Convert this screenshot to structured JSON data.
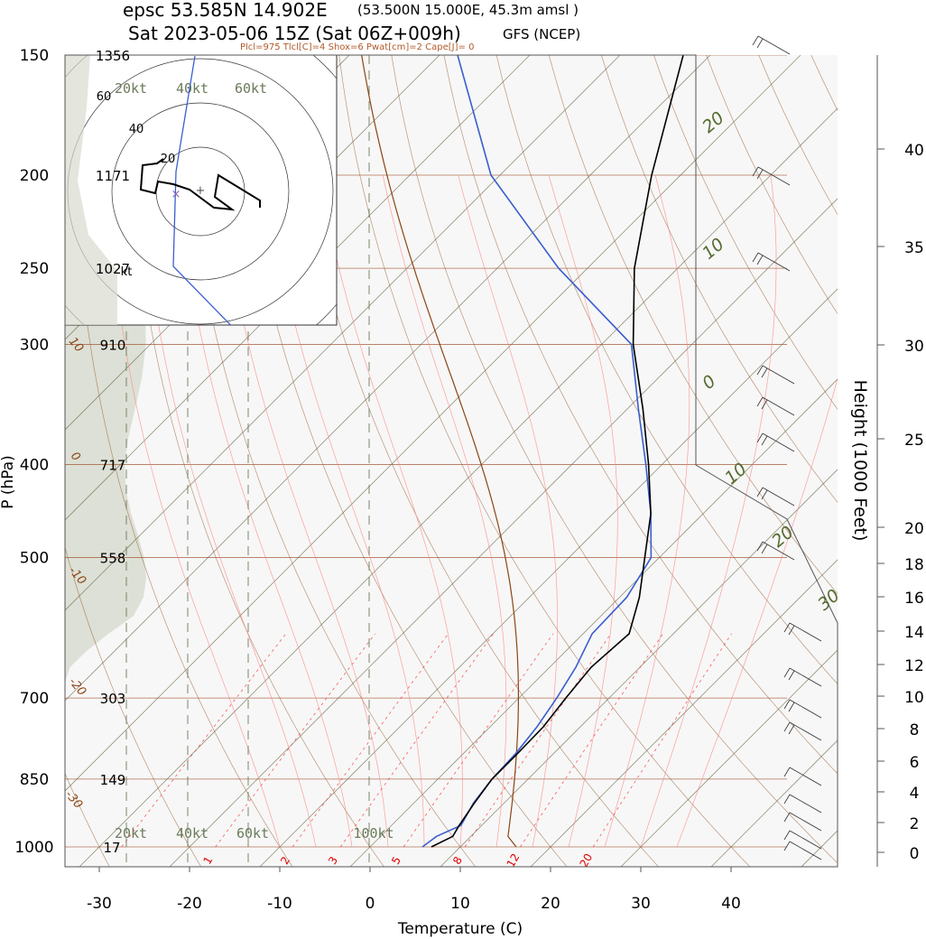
{
  "header": {
    "title_main": "epsc 53.585N 14.902E",
    "title_coords": "(53.500N 15.000E,  45.3m amsl )",
    "subtitle_main": "Sat 2023-05-06 15Z (Sat 06Z+009h)",
    "model": "GFS (NCEP)",
    "indices": "Plcl=975 Tlcl[C]=4 Shox=6 Pwat[cm]=2 Cape[J]= 0"
  },
  "colors": {
    "isobar": "#a0522d",
    "isotherm": "#6b6b4a",
    "dry_adiabat": "#8b4513",
    "moist_adiabat": "#ff8080",
    "mixing_ratio": "#ff3030",
    "temperature": "#000000",
    "dewpoint": "#3a5fcd",
    "parcel": "#8b4513",
    "shade": "#d8dcd0",
    "hodo_dewline": "#3a5fcd",
    "label_green": "#556b2f"
  },
  "chart_data": {
    "type": "skew-t",
    "xlabel": "Temperature (C)",
    "ylabel": "P (hPa)",
    "y2label": "Height (1000 Feet)",
    "pressure_levels": [
      150,
      200,
      250,
      300,
      400,
      500,
      700,
      850,
      1000
    ],
    "pressure_tick_labels": [
      "150",
      "200",
      "250",
      "300",
      "400",
      "500",
      "700",
      "850",
      "1000"
    ],
    "geopotential_labels": [
      {
        "p": 150,
        "label": "1356"
      },
      {
        "p": 200,
        "label": "1171"
      },
      {
        "p": 250,
        "label": "1027"
      },
      {
        "p": 300,
        "label": "910"
      },
      {
        "p": 400,
        "label": "717"
      },
      {
        "p": 500,
        "label": "558"
      },
      {
        "p": 700,
        "label": "303"
      },
      {
        "p": 850,
        "label": "149"
      },
      {
        "p": 1000,
        "label": "17"
      }
    ],
    "x_ticks": [
      -30,
      -20,
      -10,
      0,
      10,
      20,
      30,
      40
    ],
    "x_tick_labels": [
      "-30",
      "-20",
      "-10",
      "0",
      "10",
      "20",
      "30",
      "40"
    ],
    "height_kft_ticks": [
      0,
      2,
      4,
      6,
      8,
      10,
      12,
      14,
      16,
      18,
      20,
      25,
      30,
      35,
      40
    ],
    "mixing_ratio_labels": [
      "1",
      "2",
      "3",
      "5",
      "8",
      "12",
      "20"
    ],
    "mixing_ratio_values": [
      1,
      2,
      3,
      5,
      8,
      12,
      20
    ],
    "isotherm_labels_right": [
      "20",
      "10",
      "0",
      "10",
      "20",
      "30"
    ],
    "isotherm_labels_right_values": [
      20,
      10,
      0,
      -10,
      -20,
      -30
    ],
    "isotherm_labels_left": [
      "10",
      "0",
      "-10",
      "-20",
      "-30"
    ],
    "isotherm_labels_left_values": [
      10,
      0,
      -10,
      -20,
      -30
    ],
    "wind_speed_labels": [
      "20kt",
      "40kt",
      "60kt",
      "100kt"
    ],
    "temperature_profile": [
      {
        "p": 1000,
        "t": 6.8
      },
      {
        "p": 975,
        "t": 8.0
      },
      {
        "p": 950,
        "t": 7.5
      },
      {
        "p": 900,
        "t": 6.7
      },
      {
        "p": 850,
        "t": 6.0
      },
      {
        "p": 800,
        "t": 6.0
      },
      {
        "p": 750,
        "t": 5.9
      },
      {
        "p": 700,
        "t": 5.2
      },
      {
        "p": 650,
        "t": 4.6
      },
      {
        "p": 600,
        "t": 5.1
      },
      {
        "p": 550,
        "t": 2.2
      },
      {
        "p": 500,
        "t": -1.6
      },
      {
        "p": 450,
        "t": -5.8
      },
      {
        "p": 400,
        "t": -11.5
      },
      {
        "p": 350,
        "t": -18.3
      },
      {
        "p": 300,
        "t": -26.5
      },
      {
        "p": 250,
        "t": -34.8
      },
      {
        "p": 200,
        "t": -43.2
      },
      {
        "p": 150,
        "t": -53.0
      }
    ],
    "dewpoint_profile": [
      {
        "p": 1000,
        "td": 5.8
      },
      {
        "p": 975,
        "td": 6.2
      },
      {
        "p": 950,
        "td": 7.7
      },
      {
        "p": 900,
        "td": 6.6
      },
      {
        "p": 850,
        "td": 6.0
      },
      {
        "p": 800,
        "td": 5.8
      },
      {
        "p": 750,
        "td": 5.2
      },
      {
        "p": 700,
        "td": 4.2
      },
      {
        "p": 650,
        "td": 2.9
      },
      {
        "p": 600,
        "td": 1.0
      },
      {
        "p": 550,
        "td": 0.8
      },
      {
        "p": 500,
        "td": -0.9
      },
      {
        "p": 450,
        "td": -5.8
      },
      {
        "p": 400,
        "td": -11.8
      },
      {
        "p": 350,
        "td": -18.8
      },
      {
        "p": 300,
        "td": -26.7
      },
      {
        "p": 250,
        "td": -43.2
      },
      {
        "p": 200,
        "td": -61.0
      },
      {
        "p": 150,
        "td": -78.0
      }
    ],
    "parcel": {
      "surface_t": 16.2,
      "surface_p": 1000,
      "lcl_p": 975,
      "lcl_t": 4
    }
  }
}
